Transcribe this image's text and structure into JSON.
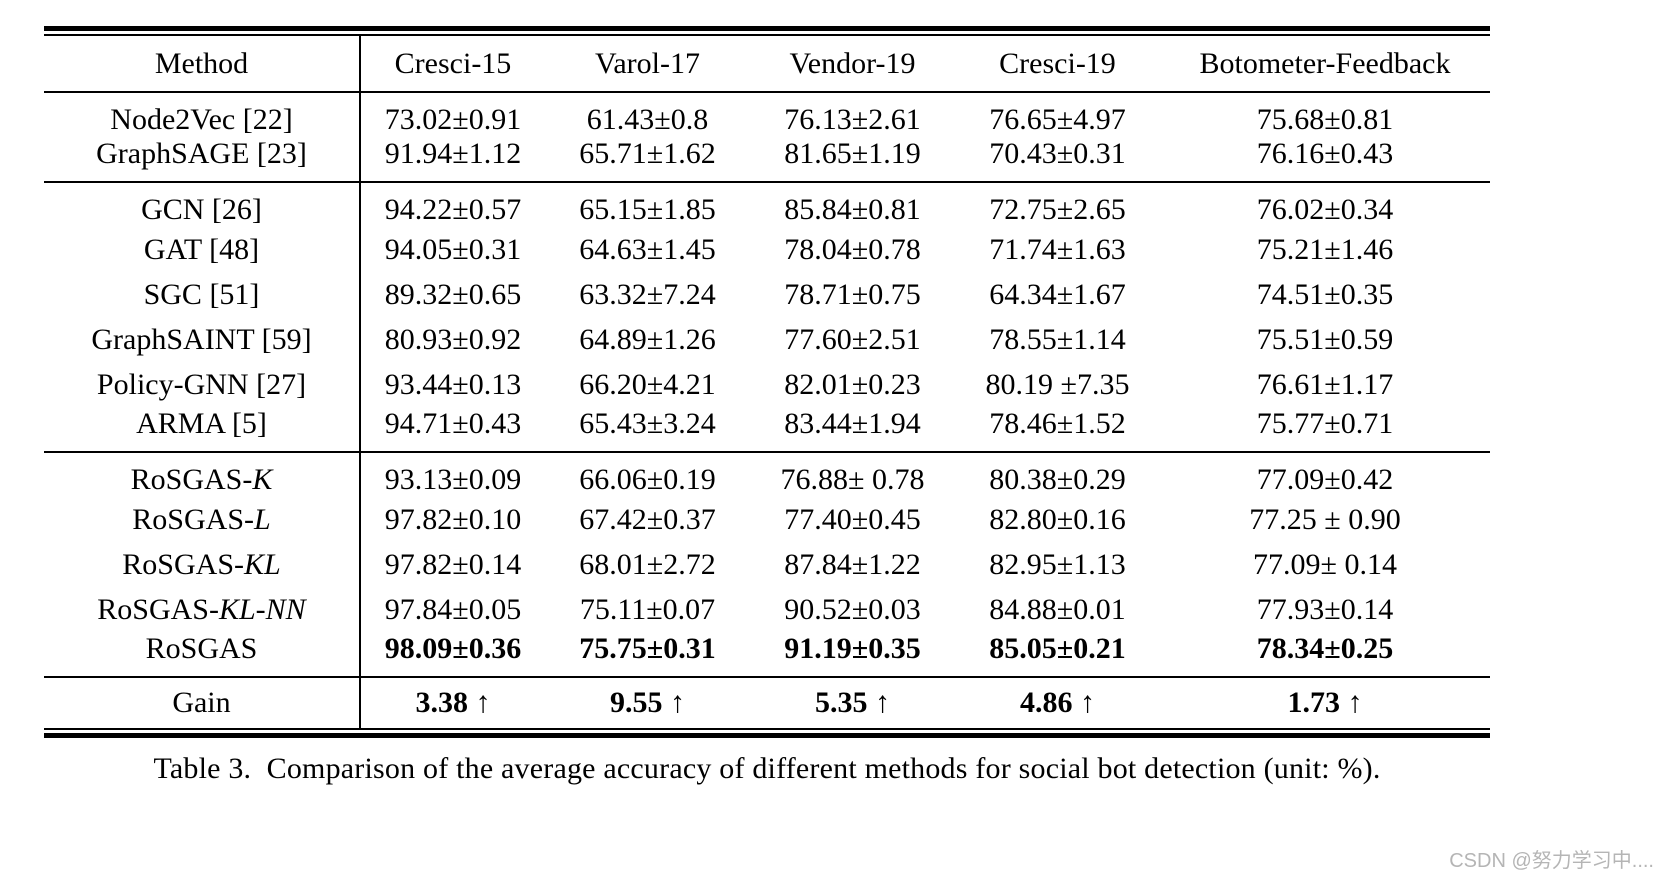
{
  "page": {
    "caption": "Table 3.  Comparison of the average accuracy of different methods for social bot detection (unit: %).",
    "watermark": "CSDN @努力学习中...."
  },
  "table": {
    "header": [
      "Method",
      "Cresci-15",
      "Varol-17",
      "Vendor-19",
      "Cresci-19",
      "Botometer-Feedback"
    ],
    "groups": [
      {
        "rows": [
          {
            "prefix": "Node2Vec [22]",
            "suffix": "",
            "values": [
              "73.02±0.91",
              "61.43±0.8",
              "76.13±2.61",
              "76.65±4.97",
              "75.68±0.81"
            ]
          },
          {
            "prefix": "GraphSAGE [23]",
            "suffix": "",
            "values": [
              "91.94±1.12",
              "65.71±1.62",
              "81.65±1.19",
              "70.43±0.31",
              "76.16±0.43"
            ]
          }
        ]
      },
      {
        "rows": [
          {
            "prefix": "GCN [26]",
            "suffix": "",
            "values": [
              "94.22±0.57",
              "65.15±1.85",
              "85.84±0.81",
              "72.75±2.65",
              "76.02±0.34"
            ]
          },
          {
            "prefix": "GAT [48]",
            "suffix": "",
            "values": [
              "94.05±0.31",
              "64.63±1.45",
              "78.04±0.78",
              "71.74±1.63",
              "75.21±1.46"
            ]
          },
          {
            "prefix": "SGC [51]",
            "suffix": "",
            "values": [
              "89.32±0.65",
              "63.32±7.24",
              "78.71±0.75",
              "64.34±1.67",
              "74.51±0.35"
            ]
          },
          {
            "prefix": "GraphSAINT [59]",
            "suffix": "",
            "values": [
              "80.93±0.92",
              "64.89±1.26",
              "77.60±2.51",
              "78.55±1.14",
              "75.51±0.59"
            ]
          },
          {
            "prefix": "Policy-GNN [27]",
            "suffix": "",
            "values": [
              "93.44±0.13",
              "66.20±4.21",
              "82.01±0.23",
              "80.19 ±7.35",
              "76.61±1.17"
            ]
          },
          {
            "prefix": "ARMA [5]",
            "suffix": "",
            "values": [
              "94.71±0.43",
              "65.43±3.24",
              "83.44±1.94",
              "78.46±1.52",
              "75.77±0.71"
            ]
          }
        ]
      },
      {
        "rows": [
          {
            "prefix": "RoSGAS-",
            "suffix": "K",
            "values": [
              "93.13±0.09",
              "66.06±0.19",
              "76.88± 0.78",
              "80.38±0.29",
              "77.09±0.42"
            ]
          },
          {
            "prefix": "RoSGAS-",
            "suffix": "L",
            "values": [
              "97.82±0.10",
              "67.42±0.37",
              "77.40±0.45",
              "82.80±0.16",
              "77.25 ± 0.90"
            ]
          },
          {
            "prefix": "RoSGAS-",
            "suffix": "KL",
            "values": [
              "97.82±0.14",
              "68.01±2.72",
              "87.84±1.22",
              "82.95±1.13",
              "77.09± 0.14"
            ]
          },
          {
            "prefix": "RoSGAS-",
            "suffix": "KL-NN",
            "values": [
              "97.84±0.05",
              "75.11±0.07",
              "90.52±0.03",
              "84.88±0.01",
              "77.93±0.14"
            ]
          },
          {
            "prefix": "RoSGAS",
            "suffix": "",
            "values": [
              "98.09±0.36",
              "75.75±0.31",
              "91.19±0.35",
              "85.05±0.21",
              "78.34±0.25"
            ]
          }
        ]
      },
      {
        "rows": [
          {
            "prefix": "Gain",
            "suffix": "",
            "values": [
              "3.38 ↑",
              "9.55 ↑",
              "5.35 ↑",
              "4.86 ↑",
              "1.73 ↑"
            ]
          }
        ]
      }
    ]
  }
}
